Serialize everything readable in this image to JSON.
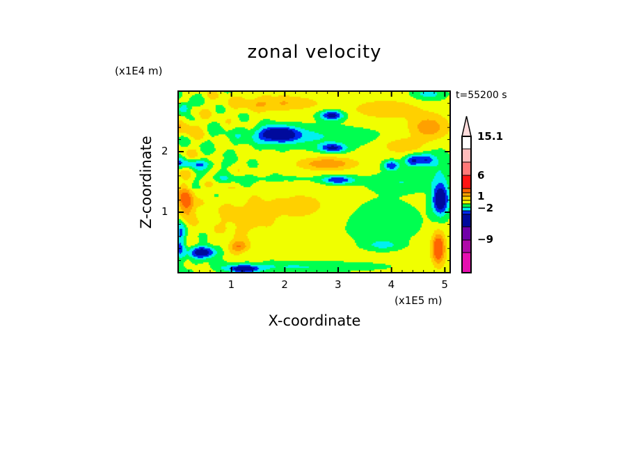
{
  "chart_data": {
    "type": "heatmap",
    "subtype": "filled-contour",
    "title": "zonal velocity",
    "xlabel": "X-coordinate",
    "ylabel": "Z-coordinate",
    "x_unit_label": "(x1E5 m)",
    "y_unit_label": "(x1E4 m)",
    "annotation": "t=55200 s",
    "xlim": [
      0,
      5.1
    ],
    "ylim": [
      0,
      3.0
    ],
    "x_ticks": [
      "1",
      "2",
      "3",
      "4",
      "5"
    ],
    "y_ticks": [
      "1",
      "2"
    ],
    "colorbar": {
      "tick_labels": [
        "15.1",
        "6",
        "1",
        "−2",
        "−9"
      ],
      "extend": "max",
      "levels": [
        {
          "min": null,
          "max": -12,
          "color": "#e60fb0"
        },
        {
          "min": -12,
          "max": -9,
          "color": "#b00aa8"
        },
        {
          "min": -9,
          "max": -6,
          "color": "#7000a8"
        },
        {
          "min": -6,
          "max": -3,
          "color": "#000a9c"
        },
        {
          "min": -3,
          "max": -2,
          "color": "#0028f0"
        },
        {
          "min": -2,
          "max": -1,
          "color": "#00f0f0"
        },
        {
          "min": -1,
          "max": 0,
          "color": "#00ff50"
        },
        {
          "min": 0,
          "max": 1,
          "color": "#f0ff00"
        },
        {
          "min": 1,
          "max": 2,
          "color": "#ffd000"
        },
        {
          "min": 2,
          "max": 3,
          "color": "#ffa000"
        },
        {
          "min": 3,
          "max": 6,
          "color": "#ff6400"
        },
        {
          "min": 6,
          "max": 9,
          "color": "#ff1414"
        },
        {
          "min": 9,
          "max": 12,
          "color": "#ff7878"
        },
        {
          "min": 12,
          "max": 15.1,
          "color": "#ffbcbc"
        },
        {
          "min": 15.1,
          "max": null,
          "color": "#ffdcdc"
        }
      ]
    }
  }
}
